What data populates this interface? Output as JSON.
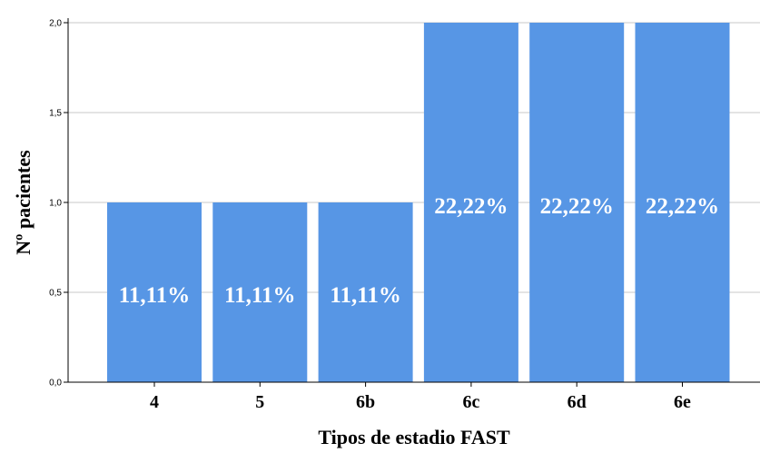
{
  "chart_data": {
    "type": "bar",
    "categories": [
      "4",
      "5",
      "6b",
      "6c",
      "6d",
      "6e"
    ],
    "values": [
      1,
      1,
      1,
      2,
      2,
      2
    ],
    "data_labels": [
      "11,11%",
      "11,11%",
      "11,11%",
      "22,22%",
      "22,22%",
      "22,22%"
    ],
    "xlabel": "Tipos de estadio FAST",
    "ylabel": "Nº pacientes",
    "ylim": [
      0,
      2
    ],
    "yticks": [
      0,
      0.5,
      1,
      1.5,
      2
    ],
    "ytick_labels": [
      "0,0",
      "0,5",
      "1,0",
      "1,5",
      "2,0"
    ],
    "grid": true,
    "bar_color": "#5796E5"
  }
}
